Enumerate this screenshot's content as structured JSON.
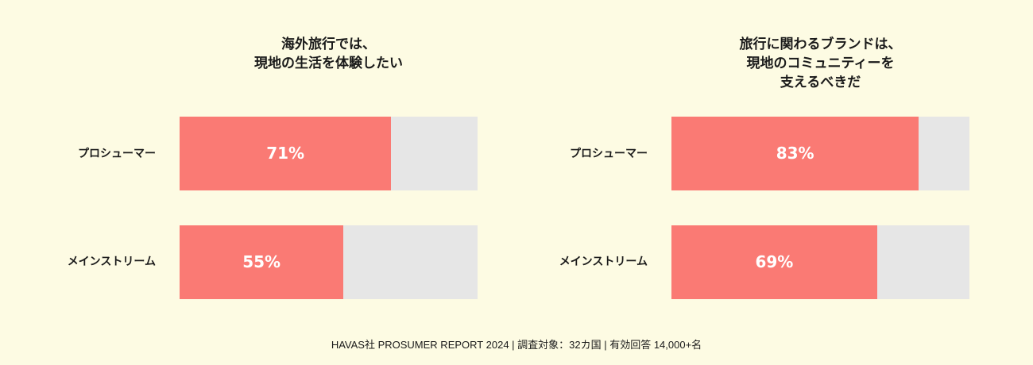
{
  "background_color": "#fdfbe3",
  "colors": {
    "bar_fill": "#fa7a74",
    "bar_track": "#e6e6e6",
    "value_text": "#ffffff"
  },
  "chart_data": [
    {
      "type": "bar",
      "orientation": "horizontal",
      "stacked_remainder": true,
      "title": "海外旅行では、\n現地の生活を体験したい",
      "categories": [
        "プロシューマー",
        "メインストリーム"
      ],
      "values": [
        71,
        55
      ],
      "value_labels": [
        "71%",
        "55%"
      ],
      "xlim": [
        0,
        100
      ],
      "unit": "%",
      "grid": false,
      "legend": "none"
    },
    {
      "type": "bar",
      "orientation": "horizontal",
      "stacked_remainder": true,
      "title": "旅行に関わるブランドは、\n現地のコミュニティーを\n支えるべきだ",
      "categories": [
        "プロシューマー",
        "メインストリーム"
      ],
      "values": [
        83,
        69
      ],
      "value_labels": [
        "83%",
        "69%"
      ],
      "xlim": [
        0,
        100
      ],
      "unit": "%",
      "grid": false,
      "legend": "none"
    }
  ],
  "footer": "HAVAS社 PROSUMER REPORT 2024 | 調査対象：32カ国 | 有効回答 14,000+名"
}
